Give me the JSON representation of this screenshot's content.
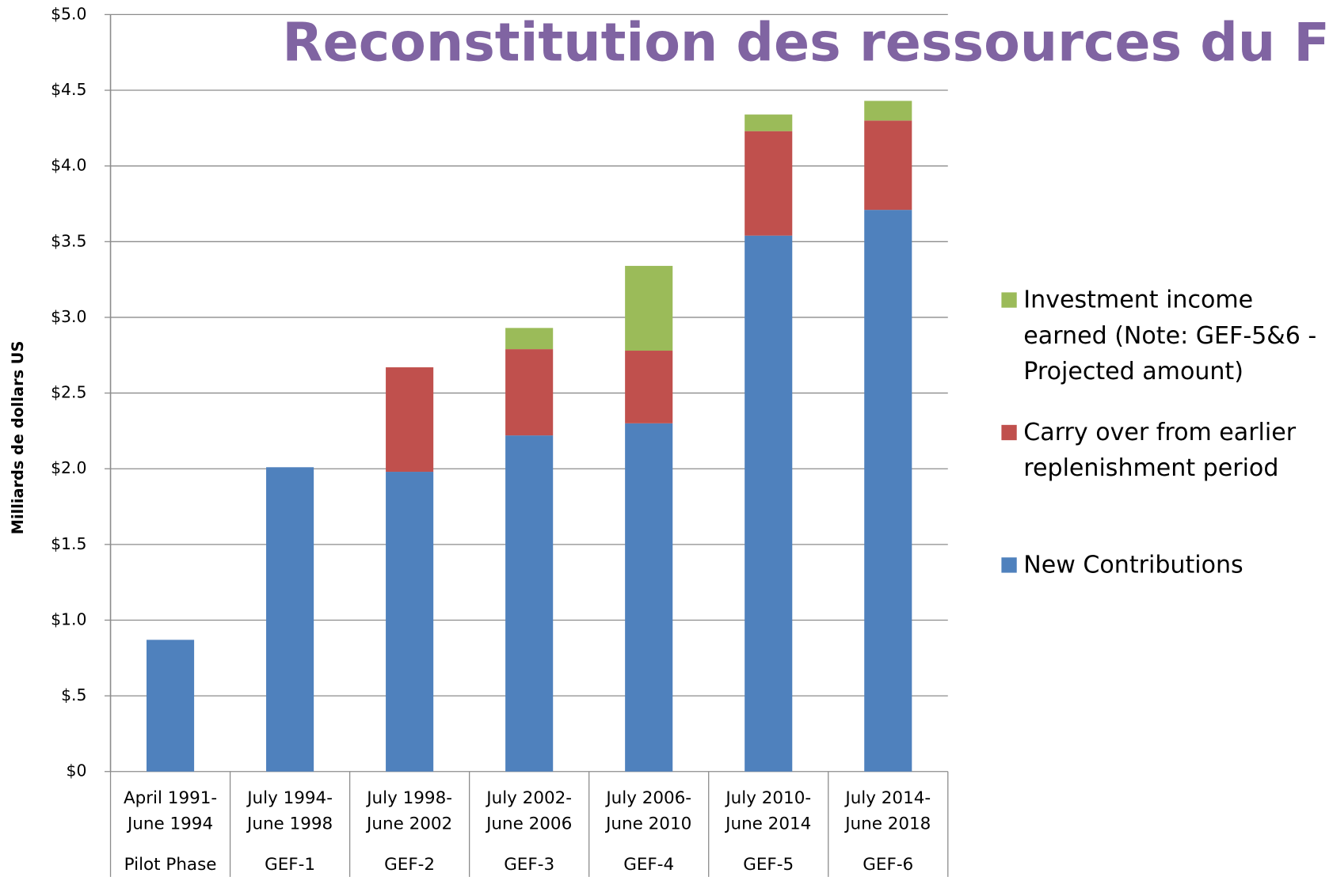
{
  "chart_data": {
    "type": "stacked_bar",
    "title": "Reconstitution des ressources du FEM",
    "y_label": "Milliards de dollars US",
    "categories": [
      [
        "April 1991-",
        "June 1994"
      ],
      [
        "July 1994-",
        "June 1998"
      ],
      [
        "July 1998-",
        "June 2002"
      ],
      [
        "July 2002-",
        "June 2006"
      ],
      [
        "July 2006-",
        "June 2010"
      ],
      [
        "July 2010-",
        "June 2014"
      ],
      [
        "July 2014-",
        "June 2018"
      ]
    ],
    "groups": [
      "Pilot Phase",
      "GEF-1",
      "GEF-2",
      "GEF-3",
      "GEF-4",
      "GEF-5",
      "GEF-6"
    ],
    "series": [
      {
        "name": "New Contributions",
        "color": "#4f81bd",
        "values": [
          0.87,
          2.01,
          1.98,
          2.22,
          2.3,
          3.54,
          3.71
        ]
      },
      {
        "name": "Carry over from earlier replenishment period",
        "color": "#c0504d",
        "values": [
          null,
          null,
          0.69,
          0.57,
          0.48,
          0.69,
          0.59
        ]
      },
      {
        "name": "Investment income earned (Note: GEF-5&6 - Projected amount)",
        "color": "#9bbb59",
        "values": [
          null,
          null,
          null,
          0.14,
          0.56,
          0.11,
          0.13
        ]
      }
    ],
    "ylim": [
      0,
      5
    ],
    "yticks": [
      {
        "value": 0,
        "label": "$0"
      },
      {
        "value": 0.5,
        "label": "$.5"
      },
      {
        "value": 1,
        "label": "$1.0"
      },
      {
        "value": 1.5,
        "label": "$1.5"
      },
      {
        "value": 2,
        "label": "$2.0"
      },
      {
        "value": 2.5,
        "label": "$2.5"
      },
      {
        "value": 3,
        "label": "$3.0"
      },
      {
        "value": 3.5,
        "label": "$3.5"
      },
      {
        "value": 4,
        "label": "$4.0"
      },
      {
        "value": 4.5,
        "label": "$4.5"
      },
      {
        "value": 5,
        "label": "$5.0"
      }
    ],
    "grid": true,
    "legend_position": "right"
  }
}
